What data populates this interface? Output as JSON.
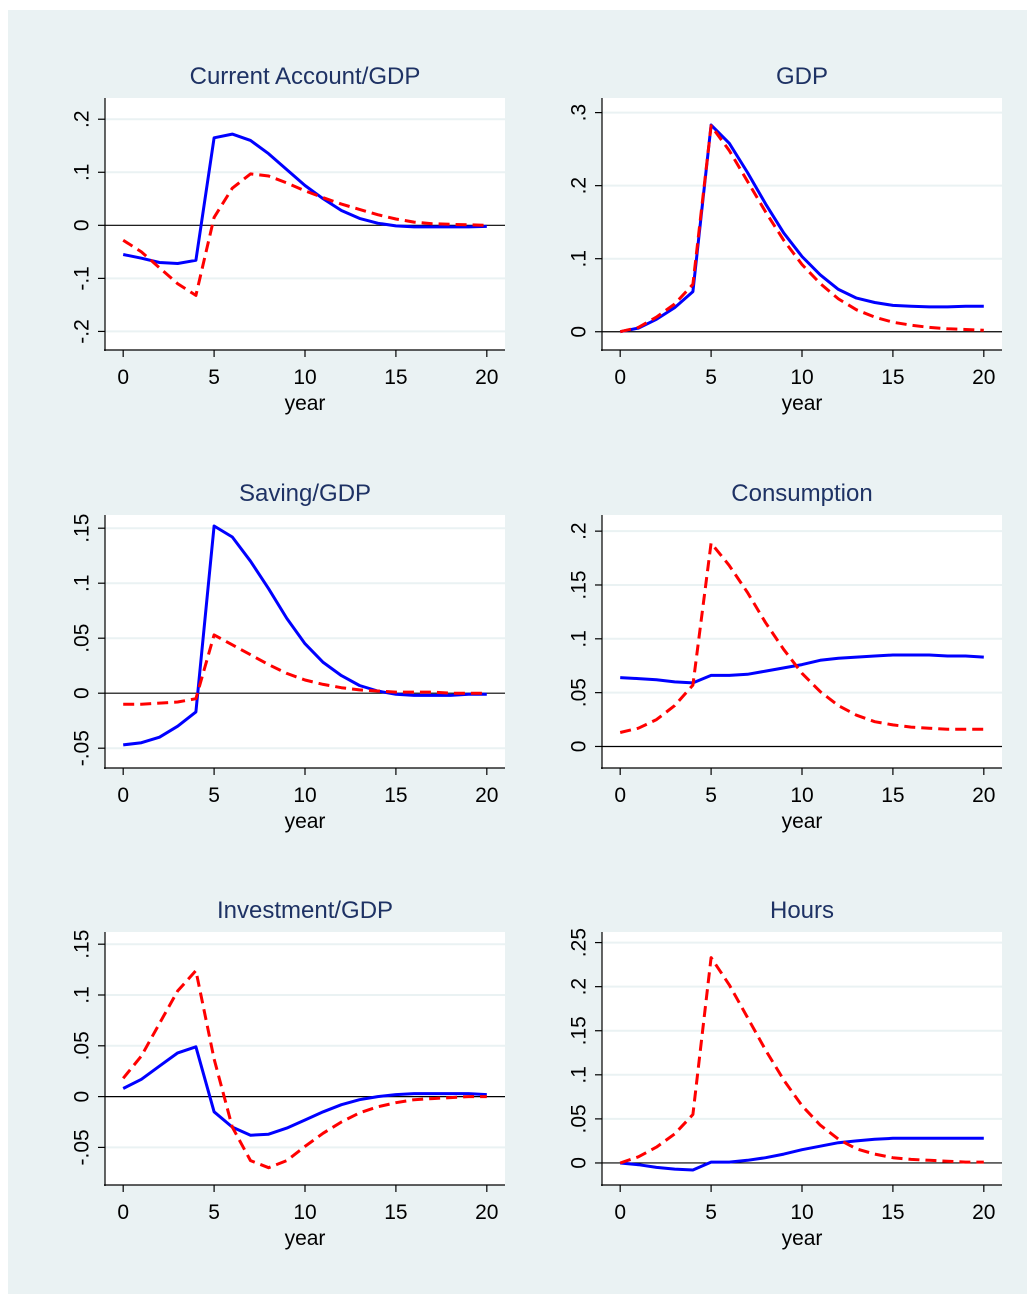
{
  "colors": {
    "outer_bg": "#ffffff",
    "figure_bg": "#eaf2f3",
    "plot_bg": "#ffffff",
    "grid": "#eaf2f3",
    "title": "#1e3264",
    "text": "#000000",
    "solid_series": "#0000ff",
    "dashed_series": "#ff0000"
  },
  "chart_data": [
    {
      "type": "line",
      "title": "Current Account/GDP",
      "xlabel": "year",
      "ylabel": "",
      "xlim": [
        -1,
        21
      ],
      "ylim": [
        -0.235,
        0.24
      ],
      "xticks": [
        0,
        5,
        10,
        15,
        20
      ],
      "xtick_labels": [
        "0",
        "5",
        "10",
        "15",
        "20"
      ],
      "yticks": [
        -0.2,
        -0.1,
        0,
        0.1,
        0.2
      ],
      "ytick_labels": [
        "-.2",
        "-.1",
        "0",
        ".1",
        ".2"
      ],
      "zero_line": true,
      "grid": true,
      "x": [
        0,
        1,
        2,
        3,
        4,
        5,
        6,
        7,
        8,
        9,
        10,
        11,
        12,
        13,
        14,
        15,
        16,
        17,
        18,
        19,
        20
      ],
      "series": [
        {
          "style": "solid",
          "color": "#0000ff",
          "values": [
            -0.055,
            -0.062,
            -0.07,
            -0.072,
            -0.066,
            0.165,
            0.172,
            0.16,
            0.135,
            0.105,
            0.075,
            0.05,
            0.028,
            0.013,
            0.004,
            -0.001,
            -0.003,
            -0.003,
            -0.003,
            -0.003,
            -0.002
          ]
        },
        {
          "style": "dashed",
          "color": "#ff0000",
          "values": [
            -0.028,
            -0.05,
            -0.08,
            -0.11,
            -0.132,
            0.015,
            0.07,
            0.097,
            0.093,
            0.08,
            0.065,
            0.052,
            0.04,
            0.03,
            0.02,
            0.012,
            0.006,
            0.003,
            0.002,
            0.001,
            0.0
          ]
        }
      ]
    },
    {
      "type": "line",
      "title": "GDP",
      "xlabel": "year",
      "ylabel": "",
      "xlim": [
        -1,
        21
      ],
      "ylim": [
        -0.025,
        0.32
      ],
      "xticks": [
        0,
        5,
        10,
        15,
        20
      ],
      "xtick_labels": [
        "0",
        "5",
        "10",
        "15",
        "20"
      ],
      "yticks": [
        0,
        0.1,
        0.2,
        0.3
      ],
      "ytick_labels": [
        "0",
        ".1",
        ".2",
        ".3"
      ],
      "zero_line": true,
      "grid": true,
      "x": [
        0,
        1,
        2,
        3,
        4,
        5,
        6,
        7,
        8,
        9,
        10,
        11,
        12,
        13,
        14,
        15,
        16,
        17,
        18,
        19,
        20
      ],
      "series": [
        {
          "style": "solid",
          "color": "#0000ff",
          "values": [
            0.0,
            0.005,
            0.017,
            0.033,
            0.055,
            0.283,
            0.258,
            0.218,
            0.175,
            0.135,
            0.103,
            0.078,
            0.058,
            0.046,
            0.04,
            0.036,
            0.035,
            0.034,
            0.034,
            0.035,
            0.035
          ]
        },
        {
          "style": "dashed",
          "color": "#ff0000",
          "values": [
            0.0,
            0.006,
            0.02,
            0.038,
            0.065,
            0.282,
            0.248,
            0.206,
            0.164,
            0.125,
            0.092,
            0.066,
            0.045,
            0.03,
            0.02,
            0.013,
            0.009,
            0.006,
            0.004,
            0.003,
            0.002
          ]
        }
      ]
    },
    {
      "type": "line",
      "title": "Saving/GDP",
      "xlabel": "year",
      "ylabel": "",
      "xlim": [
        -1,
        21
      ],
      "ylim": [
        -0.068,
        0.162
      ],
      "xticks": [
        0,
        5,
        10,
        15,
        20
      ],
      "xtick_labels": [
        "0",
        "5",
        "10",
        "15",
        "20"
      ],
      "yticks": [
        -0.05,
        0,
        0.05,
        0.1,
        0.15
      ],
      "ytick_labels": [
        "-.05",
        "0",
        ".05",
        ".1",
        ".15"
      ],
      "zero_line": true,
      "grid": true,
      "x": [
        0,
        1,
        2,
        3,
        4,
        5,
        6,
        7,
        8,
        9,
        10,
        11,
        12,
        13,
        14,
        15,
        16,
        17,
        18,
        19,
        20
      ],
      "series": [
        {
          "style": "solid",
          "color": "#0000ff",
          "values": [
            -0.047,
            -0.045,
            -0.04,
            -0.03,
            -0.017,
            0.152,
            0.142,
            0.12,
            0.095,
            0.068,
            0.045,
            0.028,
            0.016,
            0.007,
            0.002,
            -0.001,
            -0.002,
            -0.002,
            -0.002,
            -0.001,
            -0.001
          ]
        },
        {
          "style": "dashed",
          "color": "#ff0000",
          "values": [
            -0.01,
            -0.01,
            -0.009,
            -0.008,
            -0.005,
            0.053,
            0.044,
            0.035,
            0.026,
            0.018,
            0.012,
            0.008,
            0.005,
            0.003,
            0.002,
            0.001,
            0.001,
            0.001,
            0.0,
            0.0,
            0.0
          ]
        }
      ]
    },
    {
      "type": "line",
      "title": "Consumption",
      "xlabel": "year",
      "ylabel": "",
      "xlim": [
        -1,
        21
      ],
      "ylim": [
        -0.02,
        0.215
      ],
      "xticks": [
        0,
        5,
        10,
        15,
        20
      ],
      "xtick_labels": [
        "0",
        "5",
        "10",
        "15",
        "20"
      ],
      "yticks": [
        0,
        0.05,
        0.1,
        0.15,
        0.2
      ],
      "ytick_labels": [
        "0",
        ".05",
        ".1",
        ".15",
        ".2"
      ],
      "zero_line": true,
      "grid": true,
      "x": [
        0,
        1,
        2,
        3,
        4,
        5,
        6,
        7,
        8,
        9,
        10,
        11,
        12,
        13,
        14,
        15,
        16,
        17,
        18,
        19,
        20
      ],
      "series": [
        {
          "style": "solid",
          "color": "#0000ff",
          "values": [
            0.064,
            0.063,
            0.062,
            0.06,
            0.059,
            0.066,
            0.066,
            0.067,
            0.07,
            0.073,
            0.076,
            0.08,
            0.082,
            0.083,
            0.084,
            0.085,
            0.085,
            0.085,
            0.084,
            0.084,
            0.083
          ]
        },
        {
          "style": "dashed",
          "color": "#ff0000",
          "values": [
            0.013,
            0.017,
            0.025,
            0.038,
            0.057,
            0.189,
            0.168,
            0.143,
            0.115,
            0.09,
            0.068,
            0.051,
            0.038,
            0.029,
            0.023,
            0.02,
            0.018,
            0.017,
            0.016,
            0.016,
            0.016
          ]
        }
      ]
    },
    {
      "type": "line",
      "title": "Investment/GDP",
      "xlabel": "year",
      "ylabel": "",
      "xlim": [
        -1,
        21
      ],
      "ylim": [
        -0.087,
        0.162
      ],
      "xticks": [
        0,
        5,
        10,
        15,
        20
      ],
      "xtick_labels": [
        "0",
        "5",
        "10",
        "15",
        "20"
      ],
      "yticks": [
        -0.05,
        0,
        0.05,
        0.1,
        0.15
      ],
      "ytick_labels": [
        "-.05",
        "0",
        ".05",
        ".1",
        ".15"
      ],
      "zero_line": true,
      "grid": true,
      "x": [
        0,
        1,
        2,
        3,
        4,
        5,
        6,
        7,
        8,
        9,
        10,
        11,
        12,
        13,
        14,
        15,
        16,
        17,
        18,
        19,
        20
      ],
      "series": [
        {
          "style": "solid",
          "color": "#0000ff",
          "values": [
            0.008,
            0.017,
            0.03,
            0.043,
            0.049,
            -0.015,
            -0.03,
            -0.038,
            -0.037,
            -0.031,
            -0.023,
            -0.015,
            -0.008,
            -0.003,
            0.0,
            0.002,
            0.003,
            0.003,
            0.003,
            0.003,
            0.002
          ]
        },
        {
          "style": "dashed",
          "color": "#ff0000",
          "values": [
            0.018,
            0.04,
            0.072,
            0.104,
            0.124,
            0.037,
            -0.03,
            -0.063,
            -0.07,
            -0.063,
            -0.049,
            -0.036,
            -0.025,
            -0.016,
            -0.01,
            -0.006,
            -0.003,
            -0.002,
            -0.001,
            0.0,
            0.0
          ]
        }
      ]
    },
    {
      "type": "line",
      "title": "Hours",
      "xlabel": "year",
      "ylabel": "",
      "xlim": [
        -1,
        21
      ],
      "ylim": [
        -0.025,
        0.262
      ],
      "xticks": [
        0,
        5,
        10,
        15,
        20
      ],
      "xtick_labels": [
        "0",
        "5",
        "10",
        "15",
        "20"
      ],
      "yticks": [
        0,
        0.05,
        0.1,
        0.15,
        0.2,
        0.25
      ],
      "ytick_labels": [
        "0",
        ".05",
        ".1",
        ".15",
        ".2",
        ".25"
      ],
      "zero_line": true,
      "grid": true,
      "x": [
        0,
        1,
        2,
        3,
        4,
        5,
        6,
        7,
        8,
        9,
        10,
        11,
        12,
        13,
        14,
        15,
        16,
        17,
        18,
        19,
        20
      ],
      "series": [
        {
          "style": "solid",
          "color": "#0000ff",
          "values": [
            0.0,
            -0.002,
            -0.005,
            -0.007,
            -0.008,
            0.001,
            0.001,
            0.003,
            0.006,
            0.01,
            0.015,
            0.019,
            0.023,
            0.025,
            0.027,
            0.028,
            0.028,
            0.028,
            0.028,
            0.028,
            0.028
          ]
        },
        {
          "style": "dashed",
          "color": "#ff0000",
          "values": [
            0.0,
            0.007,
            0.018,
            0.033,
            0.055,
            0.233,
            0.202,
            0.165,
            0.128,
            0.094,
            0.065,
            0.043,
            0.027,
            0.016,
            0.01,
            0.006,
            0.004,
            0.003,
            0.002,
            0.001,
            0.001
          ]
        }
      ]
    }
  ]
}
